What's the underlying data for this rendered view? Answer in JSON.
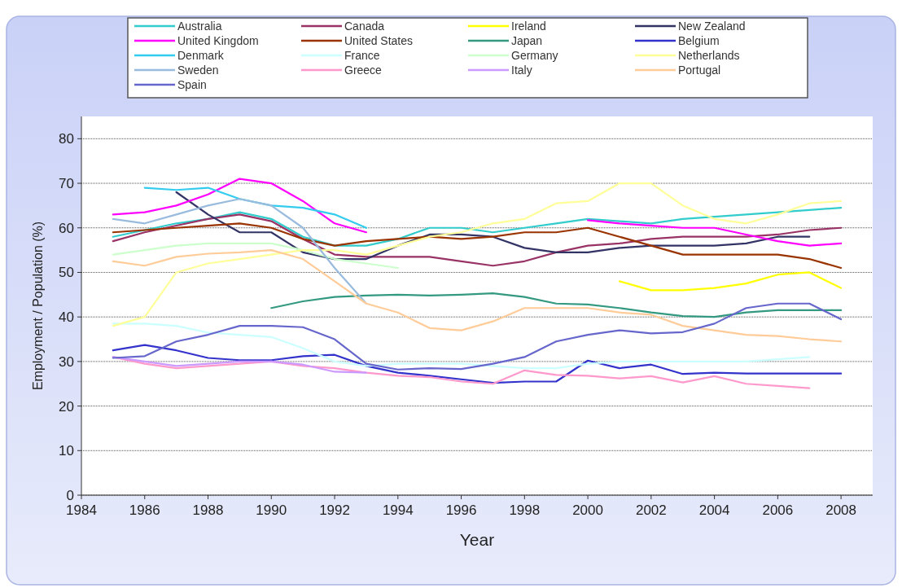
{
  "chart_data": {
    "type": "line",
    "xlabel": "Year",
    "ylabel": "Employment / Population (%)",
    "x": [
      1985,
      1986,
      1987,
      1988,
      1989,
      1990,
      1991,
      1992,
      1993,
      1994,
      1995,
      1996,
      1997,
      1998,
      1999,
      2000,
      2001,
      2002,
      2003,
      2004,
      2005,
      2006,
      2007,
      2008
    ],
    "xlim": [
      1984,
      2009
    ],
    "xticks": [
      1984,
      1986,
      1988,
      1990,
      1992,
      1994,
      1996,
      1998,
      2000,
      2002,
      2004,
      2006,
      2008
    ],
    "ylim": [
      0,
      85
    ],
    "yticks": [
      0,
      10,
      20,
      30,
      40,
      50,
      60,
      70,
      80
    ],
    "grid": "y",
    "legend": "top",
    "marker": "none",
    "line_style": "solid",
    "series": [
      {
        "name": "Australia",
        "color": "#33cccc",
        "values": [
          58,
          59.5,
          61,
          62,
          63.5,
          62,
          58,
          56,
          56,
          57.5,
          60,
          60,
          59,
          60,
          61,
          62,
          61.5,
          61,
          62,
          62.5,
          63,
          63.5,
          64,
          64.5
        ]
      },
      {
        "name": "Canada",
        "color": "#993366",
        "values": [
          57,
          59,
          60.5,
          62,
          63,
          61.5,
          57.5,
          54,
          53.5,
          53.5,
          53.5,
          52.5,
          51.5,
          52.5,
          54.5,
          56,
          56.5,
          57.5,
          58,
          58,
          58,
          58.5,
          59.5,
          60
        ]
      },
      {
        "name": "Ireland",
        "color": "#ffff00",
        "values": [
          null,
          null,
          null,
          null,
          null,
          null,
          null,
          null,
          null,
          null,
          null,
          null,
          null,
          null,
          null,
          null,
          48,
          46,
          46,
          46.5,
          47.5,
          49.5,
          50,
          46.5
        ]
      },
      {
        "name": "New Zealand",
        "color": "#333366",
        "values": [
          null,
          null,
          68,
          63,
          59,
          59,
          54.5,
          53,
          53,
          56,
          58.5,
          58.5,
          58,
          55.5,
          54.5,
          54.5,
          55.5,
          56,
          56,
          56,
          56.5,
          58,
          58,
          null
        ]
      },
      {
        "name": "United Kingdom",
        "color": "#ff00ff",
        "values": [
          63,
          63.5,
          65,
          67.5,
          71,
          70,
          66,
          61,
          59,
          null,
          null,
          null,
          null,
          null,
          null,
          61.7,
          61,
          60.5,
          60,
          60,
          58.5,
          57,
          56,
          56.5
        ]
      },
      {
        "name": "United States",
        "color": "#993300",
        "values": [
          59,
          59.5,
          60,
          60.5,
          61,
          60,
          57.5,
          56,
          57,
          57.5,
          58,
          57.5,
          58,
          59,
          59,
          60,
          58,
          56,
          54,
          54,
          54,
          54,
          53,
          51
        ]
      },
      {
        "name": "Japan",
        "color": "#339980",
        "values": [
          null,
          null,
          null,
          null,
          null,
          42,
          43.5,
          44.5,
          44.8,
          45,
          44.8,
          45,
          45.3,
          44.5,
          43,
          42.8,
          42,
          41,
          40.2,
          40,
          41,
          41.5,
          41.5,
          41.5
        ]
      },
      {
        "name": "Belgium",
        "color": "#3333cc",
        "values": [
          32.5,
          33.7,
          32.5,
          30.8,
          30.3,
          30.3,
          31.2,
          31.5,
          29,
          27.5,
          26.8,
          26,
          25.2,
          25.5,
          25.5,
          30.2,
          28.5,
          29.3,
          27.2,
          27.5,
          27.3,
          27.3,
          27.3,
          27.3
        ]
      },
      {
        "name": "Denmark",
        "color": "#33ccee",
        "values": [
          null,
          69,
          68.5,
          69,
          66.5,
          65,
          64.5,
          63,
          60,
          null,
          null,
          null,
          null,
          null,
          null,
          null,
          null,
          null,
          null,
          null,
          null,
          null,
          null,
          null
        ]
      },
      {
        "name": "France",
        "color": "#ccffff",
        "values": [
          38.5,
          38.5,
          38,
          36.5,
          36,
          35.5,
          33,
          30,
          29,
          29.5,
          29.5,
          29.5,
          29,
          28.5,
          28.5,
          29.5,
          30,
          30,
          30,
          30,
          30,
          30.5,
          31,
          null
        ]
      },
      {
        "name": "Germany",
        "color": "#ccffcc",
        "values": [
          54,
          55,
          56,
          56.5,
          56.5,
          56.5,
          55,
          53,
          52,
          51,
          null,
          null,
          null,
          null,
          null,
          null,
          null,
          null,
          null,
          null,
          null,
          null,
          null,
          null
        ]
      },
      {
        "name": "Netherlands",
        "color": "#ffff99",
        "values": [
          38,
          40,
          50,
          52,
          53,
          54,
          55,
          55,
          54,
          56,
          58,
          59,
          61,
          62,
          65.5,
          66,
          70,
          70,
          65,
          62,
          61,
          63,
          65.5,
          66
        ]
      },
      {
        "name": "Sweden",
        "color": "#99bbdd",
        "values": [
          62,
          61,
          63,
          65,
          66.5,
          65,
          60,
          51,
          43,
          null,
          null,
          null,
          null,
          null,
          null,
          null,
          null,
          null,
          null,
          null,
          null,
          null,
          null,
          null
        ]
      },
      {
        "name": "Greece",
        "color": "#ff99cc",
        "values": [
          31,
          29.5,
          28.5,
          29,
          29.5,
          30,
          29,
          28.5,
          27.5,
          26.8,
          26.5,
          25.5,
          25,
          28,
          27,
          26.8,
          26.2,
          26.7,
          25.3,
          26.7,
          25,
          24.5,
          24,
          null
        ]
      },
      {
        "name": "Italy",
        "color": "#cc99ff",
        "values": [
          31,
          30,
          29,
          29.5,
          30,
          30,
          29.3,
          27.7,
          27.5,
          null,
          null,
          null,
          null,
          null,
          null,
          null,
          null,
          null,
          null,
          null,
          null,
          null,
          null,
          null
        ]
      },
      {
        "name": "Portugal",
        "color": "#ffcc99",
        "values": [
          52.5,
          51.5,
          53.5,
          54.2,
          54.5,
          55,
          53,
          48,
          43,
          41,
          37.5,
          37,
          39,
          42,
          42,
          42,
          41,
          40.5,
          38,
          37,
          36,
          35.7,
          35,
          34.5
        ]
      },
      {
        "name": "Spain",
        "color": "#6666cc",
        "values": [
          30.8,
          31.2,
          34.5,
          36,
          38,
          38,
          37.7,
          35,
          29.5,
          28.2,
          28.5,
          28.3,
          29.5,
          31,
          34.5,
          36,
          37,
          36.3,
          36.6,
          38.5,
          42,
          43,
          43,
          39.5
        ]
      }
    ]
  }
}
